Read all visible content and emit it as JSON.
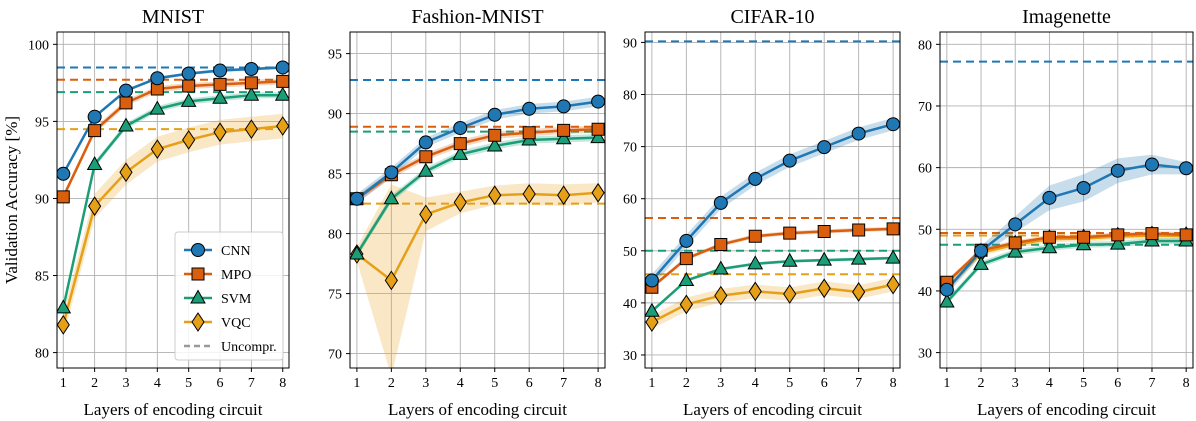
{
  "figure": {
    "ylabel": "Validation Accuracy [%]",
    "legend": {
      "location": "lower-right of first panel",
      "entries": [
        {
          "label": "CNN",
          "series": "CNN",
          "marker": "circle"
        },
        {
          "label": "MPO",
          "series": "MPO",
          "marker": "square"
        },
        {
          "label": "SVM",
          "series": "SVM",
          "marker": "triangle"
        },
        {
          "label": "VQC",
          "series": "VQC",
          "marker": "diamond"
        },
        {
          "label": "Uncompr.",
          "series": "Uncompr",
          "marker": "dashed-line"
        }
      ]
    },
    "colors": {
      "CNN": "#1f77b4",
      "MPO": "#d95f0e",
      "SVM": "#1b9e77",
      "VQC": "#e6a017",
      "Uncompr": "#999999"
    }
  },
  "chart_data": [
    {
      "type": "line",
      "title": "MNIST",
      "xlabel": "Layers of encoding circuit",
      "ylabel": "Validation Accuracy [%]",
      "x": [
        1,
        2,
        3,
        4,
        5,
        6,
        7,
        8
      ],
      "xticks": [
        "1",
        "2",
        "3",
        "4",
        "5",
        "6",
        "7",
        "8"
      ],
      "ylim": [
        79,
        100.8
      ],
      "yticks": [
        80,
        85,
        90,
        95,
        100
      ],
      "grid": true,
      "series": [
        {
          "name": "CNN",
          "values": [
            91.6,
            95.3,
            97.0,
            97.8,
            98.1,
            98.3,
            98.4,
            98.5
          ],
          "band": 0.1
        },
        {
          "name": "MPO",
          "values": [
            90.1,
            94.4,
            96.2,
            97.1,
            97.3,
            97.4,
            97.5,
            97.6
          ],
          "band": 0.2
        },
        {
          "name": "SVM",
          "values": [
            82.9,
            92.2,
            94.7,
            95.8,
            96.3,
            96.5,
            96.7,
            96.7
          ],
          "band": 0.2
        },
        {
          "name": "VQC",
          "values": [
            81.8,
            89.5,
            91.7,
            93.2,
            93.8,
            94.3,
            94.5,
            94.7
          ],
          "band": 0.8
        }
      ],
      "uncompressed": {
        "CNN": 98.5,
        "MPO": 97.7,
        "SVM": 96.9,
        "VQC": 94.5
      }
    },
    {
      "type": "line",
      "title": "Fashion-MNIST",
      "xlabel": "Layers of encoding circuit",
      "ylabel": "",
      "x": [
        1,
        2,
        3,
        4,
        5,
        6,
        7,
        8
      ],
      "xticks": [
        "1",
        "2",
        "3",
        "4",
        "5",
        "6",
        "7",
        "8"
      ],
      "ylim": [
        68.8,
        96.8
      ],
      "yticks": [
        70,
        75,
        80,
        85,
        90,
        95
      ],
      "grid": true,
      "series": [
        {
          "name": "CNN",
          "values": [
            82.9,
            85.1,
            87.6,
            88.8,
            89.9,
            90.4,
            90.6,
            91.0
          ],
          "band": 0.4
        },
        {
          "name": "MPO",
          "values": [
            82.9,
            84.9,
            86.4,
            87.5,
            88.2,
            88.4,
            88.6,
            88.7
          ],
          "band": 0.3
        },
        {
          "name": "SVM",
          "values": [
            78.3,
            82.9,
            85.2,
            86.6,
            87.3,
            87.8,
            87.9,
            88.0
          ],
          "band": 0.3
        },
        {
          "name": "VQC",
          "values": [
            78.3,
            76.1,
            81.6,
            82.6,
            83.2,
            83.3,
            83.2,
            83.4
          ],
          "band": [
            0.6,
            8.0,
            1.4,
            0.9,
            0.8,
            0.9,
            0.9,
            0.8
          ]
        }
      ],
      "uncompressed": {
        "CNN": 92.8,
        "MPO": 88.9,
        "SVM": 88.5,
        "VQC": 82.5
      }
    },
    {
      "type": "line",
      "title": "CIFAR-10",
      "xlabel": "Layers of encoding circuit",
      "ylabel": "",
      "x": [
        1,
        2,
        3,
        4,
        5,
        6,
        7,
        8
      ],
      "xticks": [
        "1",
        "2",
        "3",
        "4",
        "5",
        "6",
        "7",
        "8"
      ],
      "ylim": [
        27.5,
        92
      ],
      "yticks": [
        30,
        40,
        50,
        60,
        70,
        80,
        90
      ],
      "grid": true,
      "series": [
        {
          "name": "CNN",
          "values": [
            44.3,
            51.9,
            59.2,
            63.8,
            67.3,
            69.9,
            72.5,
            74.3
          ],
          "band": 1.2
        },
        {
          "name": "MPO",
          "values": [
            43.0,
            48.5,
            51.2,
            52.8,
            53.4,
            53.7,
            54.0,
            54.2
          ],
          "band": 0.4
        },
        {
          "name": "SVM",
          "values": [
            38.4,
            44.3,
            46.5,
            47.5,
            48.0,
            48.2,
            48.4,
            48.6
          ],
          "band": 0.3
        },
        {
          "name": "VQC",
          "values": [
            36.3,
            39.7,
            41.4,
            42.2,
            41.7,
            42.8,
            42.1,
            43.5
          ],
          "band": 1.3
        }
      ],
      "uncompressed": {
        "CNN": 90.2,
        "MPO": 56.3,
        "SVM": 50.0,
        "VQC": 45.5
      }
    },
    {
      "type": "line",
      "title": "Imagenette",
      "xlabel": "Layers of encoding circuit",
      "ylabel": "",
      "x": [
        1,
        2,
        3,
        4,
        5,
        6,
        7,
        8
      ],
      "xticks": [
        "1",
        "2",
        "3",
        "4",
        "5",
        "6",
        "7",
        "8"
      ],
      "ylim": [
        27.5,
        82
      ],
      "yticks": [
        30,
        40,
        50,
        60,
        70,
        80
      ],
      "grid": true,
      "series": [
        {
          "name": "CNN",
          "values": [
            40.2,
            46.5,
            50.8,
            55.1,
            56.7,
            59.5,
            60.5,
            59.9
          ],
          "band": [
            0.8,
            0.8,
            1.3,
            2.0,
            2.2,
            2.0,
            1.6,
            1.0
          ]
        },
        {
          "name": "MPO",
          "values": [
            41.4,
            46.6,
            47.8,
            48.7,
            48.7,
            49.1,
            49.3,
            49.1
          ],
          "band": 0.4
        },
        {
          "name": "SVM",
          "values": [
            38.2,
            44.3,
            46.3,
            47.0,
            47.5,
            47.6,
            48.1,
            48.1
          ],
          "band": 0.5
        },
        {
          "name": "VQC",
          "values": [
            40.3,
            46.2,
            47.5,
            48.4,
            48.5,
            48.8,
            49.0,
            48.9
          ],
          "band": 0.5
        }
      ],
      "uncompressed": {
        "CNN": 77.2,
        "MPO": 49.4,
        "SVM": 47.5,
        "VQC": 49.0
      }
    }
  ]
}
